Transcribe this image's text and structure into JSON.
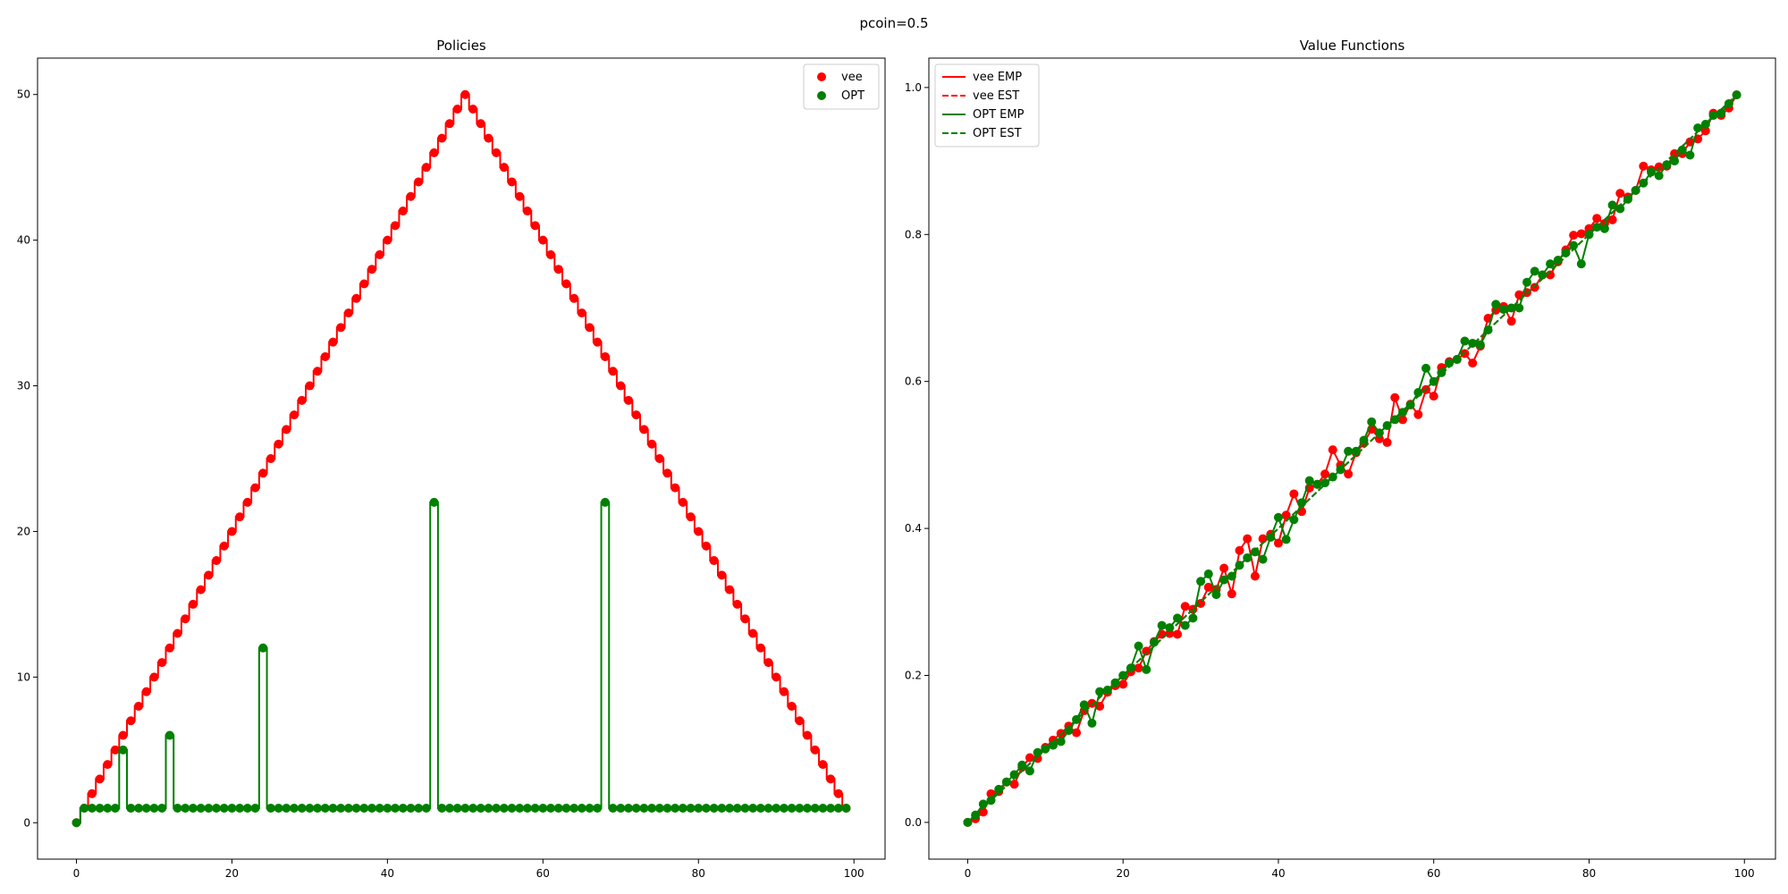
{
  "figure": {
    "suptitle": "pcoin=0.5"
  },
  "colors": {
    "red": "#ff0000",
    "green": "#008000"
  },
  "chart_data": [
    {
      "type": "line",
      "title": "Policies",
      "xlabel": "",
      "ylabel": "",
      "xlim": [
        -5,
        104
      ],
      "ylim": [
        -2.5,
        52.5
      ],
      "xticks": [
        0,
        20,
        40,
        60,
        80,
        100
      ],
      "yticks": [
        0,
        10,
        20,
        30,
        40,
        50
      ],
      "grid": false,
      "legend": {
        "placement": "top-right",
        "entries": [
          "vee",
          "OPT"
        ]
      },
      "x": [
        0,
        1,
        2,
        3,
        4,
        5,
        6,
        7,
        8,
        9,
        10,
        11,
        12,
        13,
        14,
        15,
        16,
        17,
        18,
        19,
        20,
        21,
        22,
        23,
        24,
        25,
        26,
        27,
        28,
        29,
        30,
        31,
        32,
        33,
        34,
        35,
        36,
        37,
        38,
        39,
        40,
        41,
        42,
        43,
        44,
        45,
        46,
        47,
        48,
        49,
        50,
        51,
        52,
        53,
        54,
        55,
        56,
        57,
        58,
        59,
        60,
        61,
        62,
        63,
        64,
        65,
        66,
        67,
        68,
        69,
        70,
        71,
        72,
        73,
        74,
        75,
        76,
        77,
        78,
        79,
        80,
        81,
        82,
        83,
        84,
        85,
        86,
        87,
        88,
        89,
        90,
        91,
        92,
        93,
        94,
        95,
        96,
        97,
        98,
        99
      ],
      "series": [
        {
          "name": "vee",
          "color": "#ff0000",
          "draw": "steps-mid-with-markers",
          "values": [
            0,
            1,
            2,
            3,
            4,
            5,
            6,
            7,
            8,
            9,
            10,
            11,
            12,
            13,
            14,
            15,
            16,
            17,
            18,
            19,
            20,
            21,
            22,
            23,
            24,
            25,
            26,
            27,
            28,
            29,
            30,
            31,
            32,
            33,
            34,
            35,
            36,
            37,
            38,
            39,
            40,
            41,
            42,
            43,
            44,
            45,
            46,
            47,
            48,
            49,
            50,
            49,
            48,
            47,
            46,
            45,
            44,
            43,
            42,
            41,
            40,
            39,
            38,
            37,
            36,
            35,
            34,
            33,
            32,
            31,
            30,
            29,
            28,
            27,
            26,
            25,
            24,
            23,
            22,
            21,
            20,
            19,
            18,
            17,
            16,
            15,
            14,
            13,
            12,
            11,
            10,
            9,
            8,
            7,
            6,
            5,
            4,
            3,
            2,
            1
          ]
        },
        {
          "name": "OPT",
          "color": "#008000",
          "draw": "steps-mid-with-markers",
          "values": [
            0,
            1,
            1,
            1,
            1,
            1,
            5,
            1,
            1,
            1,
            1,
            1,
            6,
            1,
            1,
            1,
            1,
            1,
            1,
            1,
            1,
            1,
            1,
            1,
            12,
            1,
            1,
            1,
            1,
            1,
            1,
            1,
            1,
            1,
            1,
            1,
            1,
            1,
            1,
            1,
            1,
            1,
            1,
            1,
            1,
            1,
            22,
            1,
            1,
            1,
            1,
            1,
            1,
            1,
            1,
            1,
            1,
            1,
            1,
            1,
            1,
            1,
            1,
            1,
            1,
            1,
            1,
            1,
            22,
            1,
            1,
            1,
            1,
            1,
            1,
            1,
            1,
            1,
            1,
            1,
            1,
            1,
            1,
            1,
            1,
            1,
            1,
            1,
            1,
            1,
            1,
            1,
            1,
            1,
            1,
            1,
            1,
            1,
            1,
            1
          ]
        }
      ]
    },
    {
      "type": "line",
      "title": "Value Functions",
      "xlabel": "",
      "ylabel": "",
      "xlim": [
        -5,
        104
      ],
      "ylim": [
        -0.05,
        1.04
      ],
      "xticks": [
        0,
        20,
        40,
        60,
        80,
        100
      ],
      "yticks": [
        0.0,
        0.2,
        0.4,
        0.6,
        0.8,
        1.0
      ],
      "grid": false,
      "legend": {
        "placement": "top-left",
        "entries": [
          "vee EMP",
          "vee EST",
          "OPT EMP",
          "OPT EST"
        ]
      },
      "x": [
        0,
        1,
        2,
        3,
        4,
        5,
        6,
        7,
        8,
        9,
        10,
        11,
        12,
        13,
        14,
        15,
        16,
        17,
        18,
        19,
        20,
        21,
        22,
        23,
        24,
        25,
        26,
        27,
        28,
        29,
        30,
        31,
        32,
        33,
        34,
        35,
        36,
        37,
        38,
        39,
        40,
        41,
        42,
        43,
        44,
        45,
        46,
        47,
        48,
        49,
        50,
        51,
        52,
        53,
        54,
        55,
        56,
        57,
        58,
        59,
        60,
        61,
        62,
        63,
        64,
        65,
        66,
        67,
        68,
        69,
        70,
        71,
        72,
        73,
        74,
        75,
        76,
        77,
        78,
        79,
        80,
        81,
        82,
        83,
        84,
        85,
        86,
        87,
        88,
        89,
        90,
        91,
        92,
        93,
        94,
        95,
        96,
        97,
        98,
        99
      ],
      "series": [
        {
          "name": "vee EMP",
          "color": "#ff0000",
          "style": "solid-with-markers",
          "values": [
            0.0,
            0.005,
            0.014,
            0.039,
            0.042,
            0.055,
            0.052,
            0.075,
            0.088,
            0.087,
            0.102,
            0.112,
            0.121,
            0.131,
            0.122,
            0.152,
            0.162,
            0.158,
            0.177,
            0.186,
            0.188,
            0.205,
            0.21,
            0.233,
            0.246,
            0.256,
            0.257,
            0.256,
            0.294,
            0.29,
            0.298,
            0.32,
            0.317,
            0.346,
            0.311,
            0.37,
            0.386,
            0.335,
            0.386,
            0.392,
            0.38,
            0.418,
            0.447,
            0.423,
            0.455,
            0.46,
            0.474,
            0.507,
            0.486,
            0.474,
            0.503,
            0.516,
            0.535,
            0.522,
            0.517,
            0.578,
            0.548,
            0.569,
            0.555,
            0.589,
            0.58,
            0.619,
            0.627,
            0.63,
            0.638,
            0.625,
            0.648,
            0.686,
            0.697,
            0.702,
            0.682,
            0.718,
            0.721,
            0.728,
            0.745,
            0.745,
            0.763,
            0.779,
            0.799,
            0.801,
            0.808,
            0.822,
            0.815,
            0.82,
            0.856,
            0.851,
            0.86,
            0.893,
            0.888,
            0.892,
            0.893,
            0.91,
            0.91,
            0.926,
            0.93,
            0.941,
            0.965,
            0.962,
            0.972,
            0.99
          ]
        },
        {
          "name": "vee EST",
          "color": "#ff0000",
          "style": "dashed",
          "values": [
            0.0,
            0.01,
            0.02,
            0.03,
            0.04,
            0.05,
            0.06,
            0.07,
            0.08,
            0.09,
            0.1,
            0.11,
            0.12,
            0.13,
            0.14,
            0.15,
            0.16,
            0.17,
            0.18,
            0.19,
            0.2,
            0.21,
            0.22,
            0.23,
            0.24,
            0.25,
            0.26,
            0.27,
            0.28,
            0.29,
            0.3,
            0.31,
            0.32,
            0.33,
            0.34,
            0.35,
            0.36,
            0.37,
            0.38,
            0.39,
            0.4,
            0.41,
            0.42,
            0.43,
            0.44,
            0.45,
            0.46,
            0.47,
            0.48,
            0.49,
            0.5,
            0.51,
            0.52,
            0.53,
            0.54,
            0.55,
            0.56,
            0.57,
            0.58,
            0.59,
            0.6,
            0.61,
            0.62,
            0.63,
            0.64,
            0.65,
            0.66,
            0.67,
            0.68,
            0.69,
            0.7,
            0.71,
            0.72,
            0.73,
            0.74,
            0.75,
            0.76,
            0.77,
            0.78,
            0.79,
            0.8,
            0.81,
            0.82,
            0.83,
            0.84,
            0.85,
            0.86,
            0.87,
            0.88,
            0.89,
            0.9,
            0.91,
            0.92,
            0.93,
            0.94,
            0.95,
            0.96,
            0.97,
            0.98,
            0.99
          ]
        },
        {
          "name": "OPT EMP",
          "color": "#008000",
          "style": "solid-with-markers",
          "values": [
            0.0,
            0.01,
            0.025,
            0.03,
            0.045,
            0.055,
            0.065,
            0.078,
            0.07,
            0.095,
            0.1,
            0.105,
            0.11,
            0.125,
            0.14,
            0.16,
            0.135,
            0.178,
            0.18,
            0.19,
            0.2,
            0.21,
            0.24,
            0.208,
            0.245,
            0.268,
            0.265,
            0.278,
            0.268,
            0.278,
            0.328,
            0.338,
            0.31,
            0.33,
            0.335,
            0.35,
            0.36,
            0.368,
            0.358,
            0.388,
            0.415,
            0.385,
            0.412,
            0.435,
            0.465,
            0.46,
            0.462,
            0.47,
            0.48,
            0.505,
            0.505,
            0.52,
            0.545,
            0.53,
            0.54,
            0.548,
            0.558,
            0.568,
            0.585,
            0.618,
            0.6,
            0.612,
            0.625,
            0.63,
            0.655,
            0.652,
            0.65,
            0.67,
            0.705,
            0.698,
            0.7,
            0.7,
            0.735,
            0.75,
            0.745,
            0.76,
            0.765,
            0.775,
            0.785,
            0.76,
            0.8,
            0.81,
            0.808,
            0.84,
            0.835,
            0.848,
            0.86,
            0.87,
            0.885,
            0.88,
            0.895,
            0.9,
            0.915,
            0.908,
            0.945,
            0.95,
            0.962,
            0.965,
            0.978,
            0.99
          ]
        },
        {
          "name": "OPT EST",
          "color": "#008000",
          "style": "dashed",
          "values": [
            0.0,
            0.01,
            0.02,
            0.03,
            0.04,
            0.05,
            0.06,
            0.07,
            0.08,
            0.09,
            0.1,
            0.11,
            0.12,
            0.13,
            0.14,
            0.15,
            0.16,
            0.17,
            0.18,
            0.19,
            0.2,
            0.21,
            0.22,
            0.23,
            0.24,
            0.25,
            0.26,
            0.27,
            0.28,
            0.29,
            0.3,
            0.31,
            0.32,
            0.33,
            0.34,
            0.35,
            0.36,
            0.37,
            0.38,
            0.39,
            0.4,
            0.41,
            0.42,
            0.43,
            0.44,
            0.45,
            0.46,
            0.47,
            0.48,
            0.49,
            0.5,
            0.51,
            0.52,
            0.53,
            0.54,
            0.55,
            0.56,
            0.57,
            0.58,
            0.59,
            0.6,
            0.61,
            0.62,
            0.63,
            0.64,
            0.65,
            0.66,
            0.67,
            0.68,
            0.69,
            0.7,
            0.71,
            0.72,
            0.73,
            0.74,
            0.75,
            0.76,
            0.77,
            0.78,
            0.79,
            0.8,
            0.81,
            0.82,
            0.83,
            0.84,
            0.85,
            0.86,
            0.87,
            0.88,
            0.89,
            0.9,
            0.91,
            0.92,
            0.93,
            0.94,
            0.95,
            0.96,
            0.97,
            0.98,
            0.99
          ]
        }
      ]
    }
  ]
}
